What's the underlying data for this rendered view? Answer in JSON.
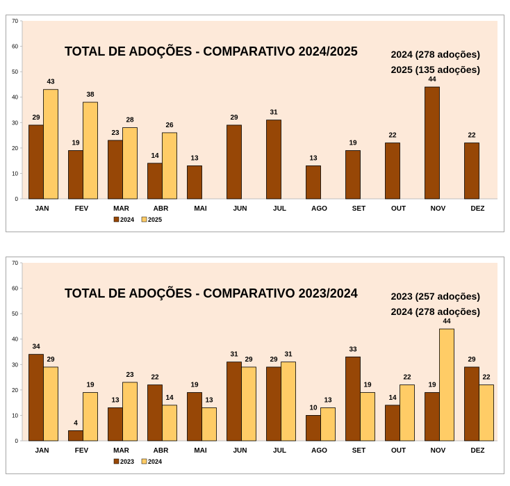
{
  "chart_data": [
    {
      "type": "bar",
      "title": "TOTAL DE ADOÇÕES - COMPARATIVO 2024/2025",
      "summary": [
        "2024 (278 adoções)",
        "2025 (135 adoções)"
      ],
      "categories": [
        "JAN",
        "FEV",
        "MAR",
        "ABR",
        "MAI",
        "JUN",
        "JUL",
        "AGO",
        "SET",
        "OUT",
        "NOV",
        "DEZ"
      ],
      "series": [
        {
          "name": "2024",
          "color": "#974706",
          "values": [
            29,
            19,
            23,
            14,
            13,
            29,
            31,
            13,
            19,
            22,
            44,
            22
          ]
        },
        {
          "name": "2025",
          "color": "#ffcc66",
          "values": [
            43,
            38,
            28,
            26,
            null,
            null,
            null,
            null,
            null,
            null,
            null,
            null
          ]
        }
      ],
      "ylim": [
        0,
        70
      ],
      "yticks": [
        0,
        10,
        20,
        30,
        40,
        50,
        60,
        70
      ],
      "plot_background": "#fde9d9",
      "legend": "bottom-center",
      "grid": false
    },
    {
      "type": "bar",
      "title": "TOTAL DE ADOÇÕES - COMPARATIVO 2023/2024",
      "summary": [
        "2023 (257 adoções)",
        "2024 (278 adoções)"
      ],
      "categories": [
        "JAN",
        "FEV",
        "MAR",
        "ABR",
        "MAI",
        "JUN",
        "JUL",
        "AGO",
        "SET",
        "OUT",
        "NOV",
        "DEZ"
      ],
      "series": [
        {
          "name": "2023",
          "color": "#974706",
          "values": [
            34,
            4,
            13,
            22,
            19,
            31,
            29,
            10,
            33,
            14,
            19,
            29
          ]
        },
        {
          "name": "2024",
          "color": "#ffcc66",
          "values": [
            29,
            19,
            23,
            14,
            13,
            29,
            31,
            13,
            19,
            22,
            44,
            22
          ]
        }
      ],
      "ylim": [
        0,
        70
      ],
      "yticks": [
        0,
        10,
        20,
        30,
        40,
        50,
        60,
        70
      ],
      "plot_background": "#fde9d9",
      "legend": "bottom-center",
      "grid": false
    }
  ]
}
